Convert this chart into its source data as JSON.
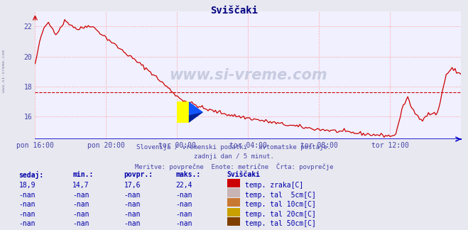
{
  "title": "Sviščaki",
  "title_color": "#000080",
  "bg_color": "#e8e8f0",
  "plot_bg_color": "#f0f0ff",
  "grid_color": "#ffaaaa",
  "line_color": "#cc0000",
  "avg_line_color": "#cc0000",
  "avg_value": 17.6,
  "watermark_color": "#c8cce0",
  "subtitle1": "Slovenija / vremenski podatki - avtomatske postaje.",
  "subtitle2": "zadnji dan / 5 minut.",
  "subtitle3": "Meritve: povprečne  Enote: metrične  Črta: povprečje",
  "subtitle_color": "#4444aa",
  "xlabel_color": "#4444aa",
  "ylabel_color": "#4444aa",
  "xtick_labels": [
    "pon 16:00",
    "pon 20:00",
    "tor 00:00",
    "tor 04:00",
    "tor 08:00",
    "tor 12:00"
  ],
  "ytick_values": [
    16,
    18,
    20,
    22
  ],
  "ylim_min": 14.5,
  "ylim_max": 23.0,
  "table_header_color": "#0000aa",
  "table_text_color": "#0000aa",
  "table_header": [
    "sedaj:",
    "min.:",
    "povpr.:",
    "maks.:",
    "Sviščaki"
  ],
  "table_rows": [
    [
      "18,9",
      "14,7",
      "17,6",
      "22,4",
      "#cc0000",
      "temp. zraka[C]"
    ],
    [
      "-nan",
      "-nan",
      "-nan",
      "-nan",
      "#c8b4b4",
      "temp. tal  5cm[C]"
    ],
    [
      "-nan",
      "-nan",
      "-nan",
      "-nan",
      "#c87832",
      "temp. tal 10cm[C]"
    ],
    [
      "-nan",
      "-nan",
      "-nan",
      "-nan",
      "#c8a000",
      "temp. tal 20cm[C]"
    ],
    [
      "-nan",
      "-nan",
      "-nan",
      "-nan",
      "#804000",
      "temp. tal 50cm[C]"
    ]
  ],
  "left_label_color": "#8888aa",
  "axis_color": "#0000cc"
}
